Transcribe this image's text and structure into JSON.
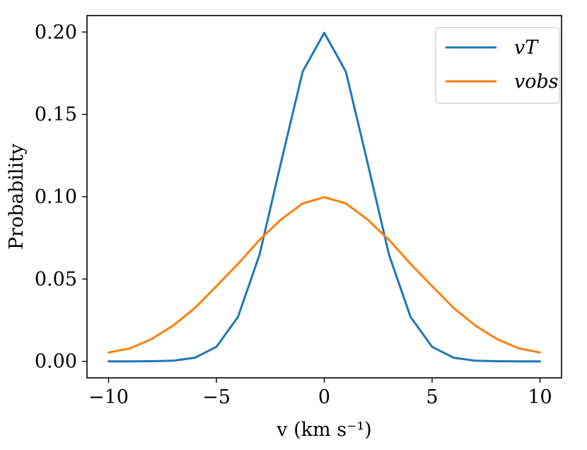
{
  "chart_data": {
    "type": "line",
    "xlabel": "v (km s⁻¹)",
    "ylabel": "Probability",
    "xlim": [
      -11,
      11
    ],
    "ylim": [
      -0.01,
      0.21
    ],
    "x_ticks": [
      -10,
      -5,
      0,
      5,
      10
    ],
    "x_tick_labels": [
      "−10",
      "−5",
      "0",
      "5",
      "10"
    ],
    "y_ticks": [
      0.0,
      0.05,
      0.1,
      0.15,
      0.2
    ],
    "y_tick_labels": [
      "0.00",
      "0.05",
      "0.10",
      "0.15",
      "0.20"
    ],
    "grid": false,
    "legend_position": "top-right",
    "series": [
      {
        "name": "vT",
        "color": "#1f77b4",
        "x": [
          -10,
          -9,
          -8,
          -7,
          -6,
          -5,
          -4,
          -3,
          -2,
          -1,
          0,
          1,
          2,
          3,
          4,
          5,
          6,
          7,
          8,
          9,
          10
        ],
        "y": [
          0.0,
          0.0,
          0.0001,
          0.0004,
          0.0022,
          0.0088,
          0.027,
          0.0648,
          0.121,
          0.176,
          0.1995,
          0.176,
          0.121,
          0.0648,
          0.027,
          0.0088,
          0.0022,
          0.0004,
          0.0001,
          0.0,
          0.0
        ]
      },
      {
        "name": "vobs",
        "color": "#ff7f0e",
        "x": [
          -10,
          -9,
          -8,
          -7,
          -6,
          -5,
          -4,
          -3,
          -2,
          -1,
          0,
          1,
          2,
          3,
          4,
          5,
          6,
          7,
          8,
          9,
          10
        ],
        "y": [
          0.0054,
          0.0079,
          0.0136,
          0.0218,
          0.0324,
          0.0457,
          0.0592,
          0.0738,
          0.0862,
          0.0959,
          0.0997,
          0.0959,
          0.0862,
          0.0738,
          0.0592,
          0.0457,
          0.0324,
          0.0218,
          0.0136,
          0.0079,
          0.0054
        ]
      }
    ]
  }
}
